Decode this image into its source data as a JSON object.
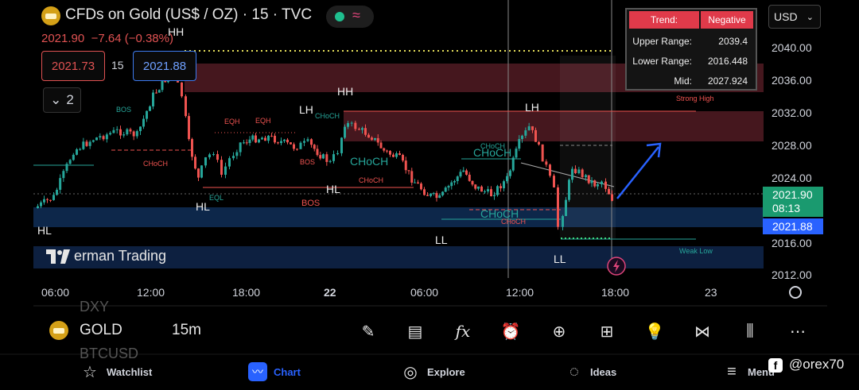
{
  "header": {
    "title": "CFDs on Gold (US$ / OZ) · 15 · TVC",
    "last_price": "2021.90",
    "change": "−7.64 (−0.38%)",
    "bid": "2021.73",
    "qty": "15",
    "ask": "2021.88",
    "collapse_count": "2",
    "currency": "USD"
  },
  "icons": {
    "symbol": "gold-bars-icon",
    "market_status": "green-dot-icon",
    "wave": "wave-icon",
    "collapse": "chevron-down-icon",
    "currency_dropdown": "chevron-down-icon",
    "lightning": "lightning-icon",
    "settings": "gear-icon"
  },
  "price_axis": [
    "2040.00",
    "2036.00",
    "2032.00",
    "2028.00",
    "2024.00",
    "2016.00",
    "2012.00"
  ],
  "price_tags": {
    "current": "2021.90",
    "countdown": "08:13",
    "ask": "2021.88"
  },
  "time_axis": [
    "06:00",
    "12:00",
    "18:00",
    "22",
    "06:00",
    "12:00",
    "18:00",
    "23"
  ],
  "trend_table": {
    "header_key": "Trend:",
    "header_value": "Negative",
    "rows": [
      {
        "key": "Upper Range:",
        "value": "2039.4"
      },
      {
        "key": "Lower Range:",
        "value": "2016.448"
      },
      {
        "key": "Mid:",
        "value": "2027.924"
      }
    ]
  },
  "annotations": {
    "hh1": "HH",
    "hh2": "HH",
    "hl1": "HL",
    "hl2": "HL",
    "hl3": "HL",
    "lh1": "LH",
    "lh2": "LH",
    "ll1": "LL",
    "ll2": "LL",
    "bos1": "BOS",
    "bos2": "BOS",
    "bos3": "BOS",
    "choch1": "CHoCH",
    "choch2": "CHoCH",
    "choch3": "CHoCH",
    "choch4": "CHoCH",
    "choch5": "CHoCH",
    "choch6": "CHoCH",
    "choch7": "CHoCH",
    "choch8": "CHoCH",
    "eqh1": "EQH",
    "eqh2": "EQH",
    "eql": "EQL",
    "strong_high": "Strong High",
    "weak_low": "Weak Low"
  },
  "watermark": "erman Trading",
  "bottom_bar": {
    "symbol": "GOLD",
    "timeframe": "15m",
    "ghost_above": "DXY",
    "ghost_below": "BTCUSD",
    "tools": [
      "pen-icon",
      "note-icon",
      "fx-icon",
      "alert-clock-icon",
      "plus-circle-icon",
      "grid-icon",
      "bulb-icon",
      "share-icon",
      "candles-icon",
      "more-icon"
    ]
  },
  "nav": [
    {
      "label": "Watchlist",
      "icon": "star-icon"
    },
    {
      "label": "Chart",
      "icon": "chart-icon"
    },
    {
      "label": "Explore",
      "icon": "compass-icon"
    },
    {
      "label": "Ideas",
      "icon": "bulb-icon"
    },
    {
      "label": "Menu",
      "icon": "hamburger-icon"
    }
  ],
  "credit": "@orex70",
  "colors": {
    "bull": "#26a69a",
    "bear": "#ef5350",
    "supply_zone": "#7a2a35",
    "demand_zone": "#10305a",
    "accent_blue": "#2962ff"
  }
}
